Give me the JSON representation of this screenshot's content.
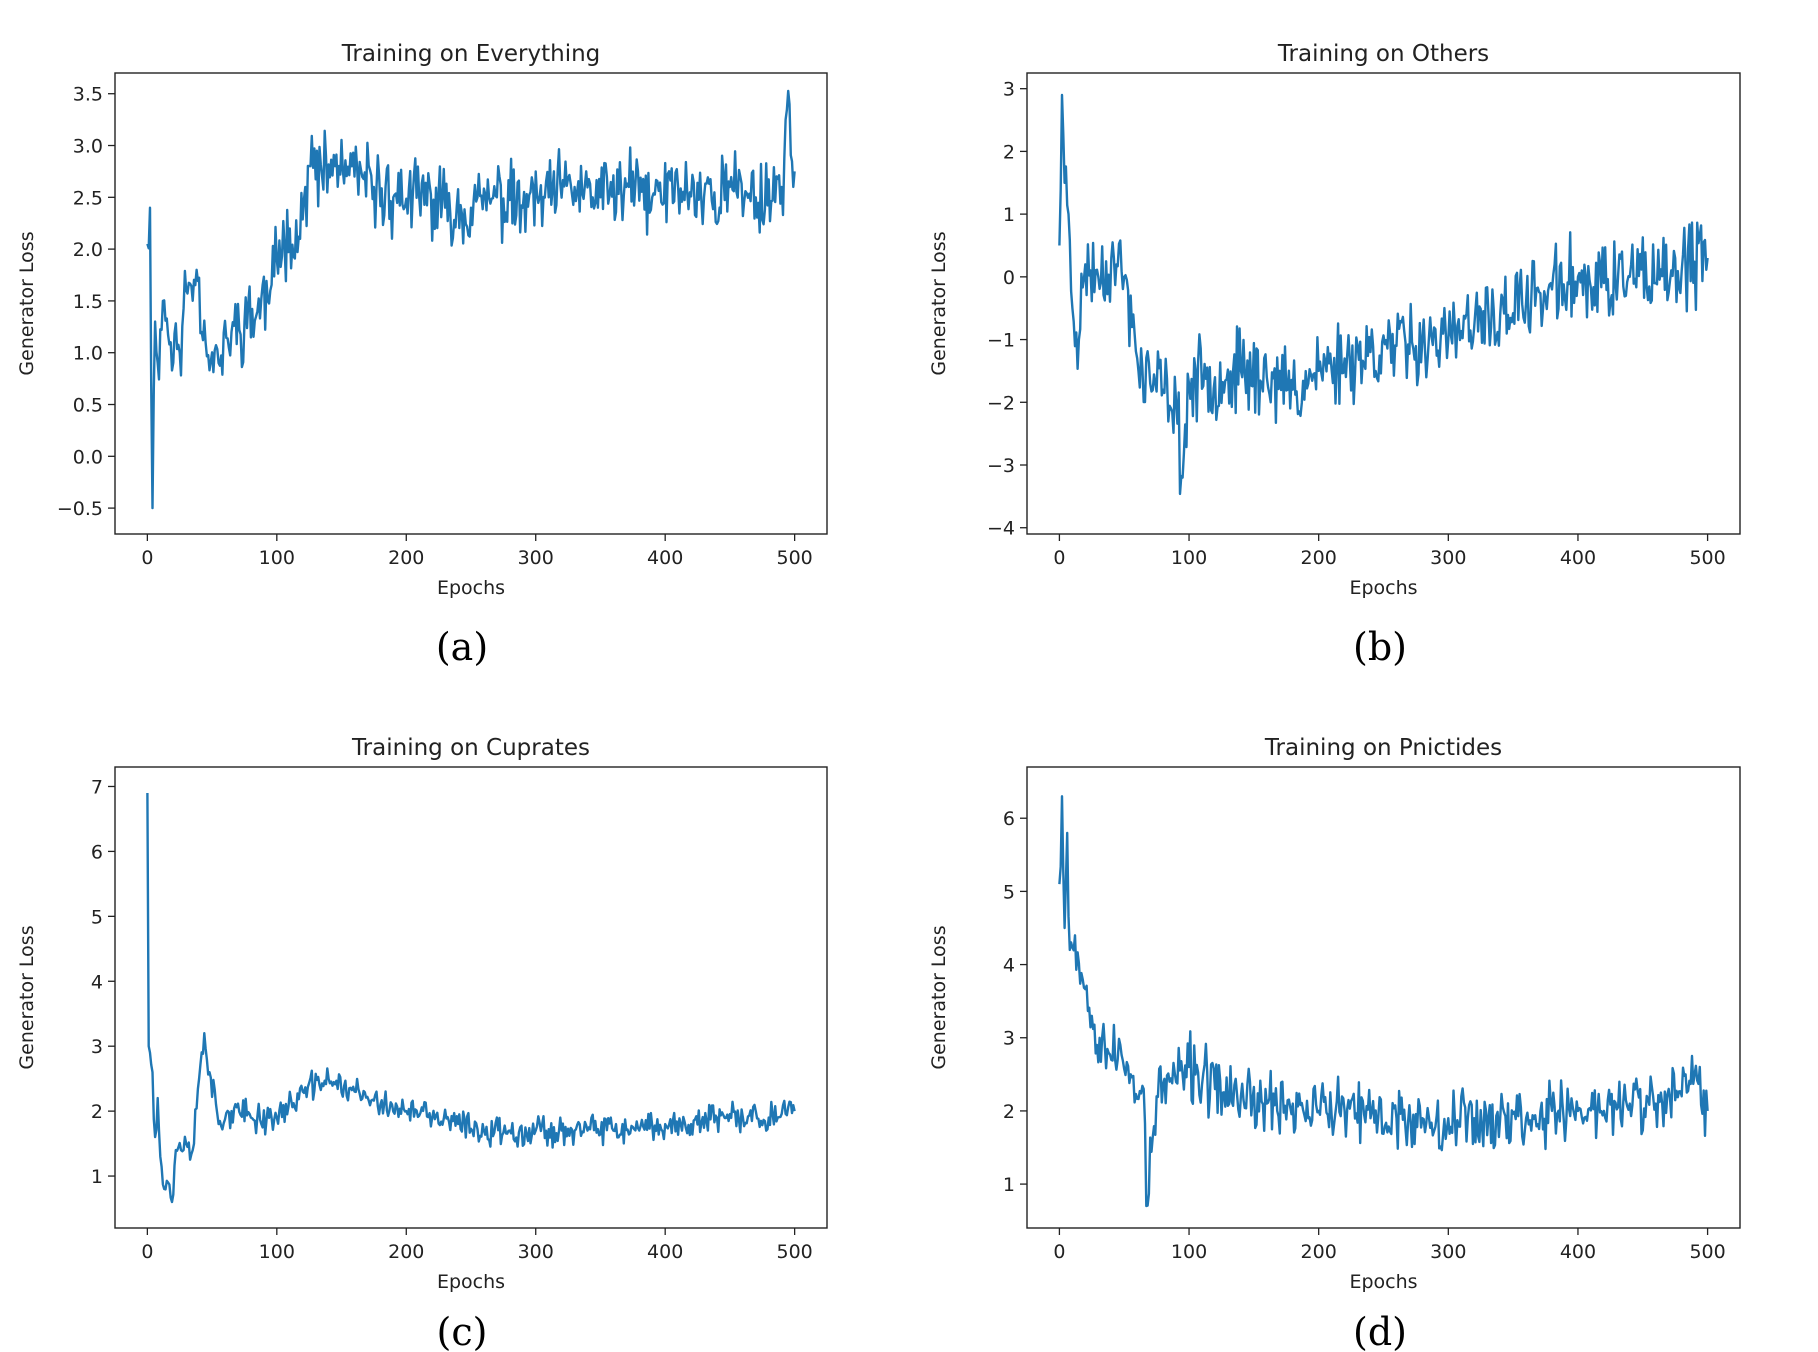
{
  "chart_data": [
    {
      "type": "line",
      "title": "Training on Everything",
      "xlabel": "Epochs",
      "ylabel": "Generator Loss",
      "caption": "(a)",
      "xlim": [
        -25,
        525
      ],
      "ylim": [
        -0.75,
        3.7
      ],
      "xticks": [
        0,
        100,
        200,
        300,
        400,
        500
      ],
      "xtick_labels": [
        "0",
        "100",
        "200",
        "300",
        "400",
        "500"
      ],
      "yticks": [
        -0.5,
        0,
        0.5,
        1,
        1.5,
        2,
        2.5,
        3,
        3.5
      ],
      "ytick_labels": [
        "−0.5",
        "0.0",
        "0.5",
        "1.0",
        "1.5",
        "2.0",
        "2.5",
        "3.0",
        "3.5"
      ],
      "grid": false,
      "series": [
        {
          "name": "generator_loss",
          "color": "#1f77b4",
          "x": [
            0,
            2,
            4,
            6,
            8,
            12,
            18,
            25,
            30,
            38,
            45,
            55,
            65,
            75,
            85,
            95,
            100,
            110,
            118,
            122,
            126,
            135,
            145,
            160,
            175,
            190,
            210,
            230,
            250,
            270,
            290,
            310,
            330,
            350,
            370,
            390,
            410,
            430,
            450,
            470,
            490,
            496,
            500
          ],
          "y": [
            2.05,
            2.4,
            -0.5,
            1.3,
            0.9,
            1.5,
            1.1,
            1.0,
            1.6,
            1.8,
            1.1,
            0.9,
            1.2,
            1.3,
            1.4,
            1.6,
            1.9,
            2.2,
            2.1,
            2.6,
            2.8,
            2.7,
            2.8,
            2.7,
            2.6,
            2.5,
            2.5,
            2.4,
            2.4,
            2.5,
            2.4,
            2.5,
            2.6,
            2.5,
            2.6,
            2.5,
            2.6,
            2.5,
            2.6,
            2.5,
            2.6,
            3.4,
            2.75
          ],
          "noise": 0.45,
          "seed": 11
        }
      ]
    },
    {
      "type": "line",
      "title": "Training on Others",
      "xlabel": "Epochs",
      "ylabel": "Generator Loss",
      "caption": "(b)",
      "xlim": [
        -25,
        525
      ],
      "ylim": [
        -4.1,
        3.25
      ],
      "xticks": [
        0,
        100,
        200,
        300,
        400,
        500
      ],
      "xtick_labels": [
        "0",
        "100",
        "200",
        "300",
        "400",
        "500"
      ],
      "yticks": [
        -4,
        -3,
        -2,
        -1,
        0,
        1,
        2,
        3
      ],
      "ytick_labels": [
        "−4",
        "−3",
        "−2",
        "−1",
        "0",
        "1",
        "2",
        "3"
      ],
      "grid": false,
      "series": [
        {
          "name": "generator_loss",
          "color": "#1f77b4",
          "x": [
            0,
            2,
            4,
            7,
            10,
            15,
            20,
            30,
            40,
            50,
            60,
            70,
            80,
            90,
            95,
            100,
            120,
            140,
            160,
            180,
            200,
            220,
            240,
            260,
            280,
            300,
            320,
            340,
            360,
            380,
            400,
            420,
            440,
            460,
            480,
            500
          ],
          "y": [
            0.5,
            2.9,
            1.5,
            1.0,
            -0.5,
            -1.0,
            0.2,
            0.0,
            0.3,
            0.0,
            -1.3,
            -1.7,
            -1.8,
            -2.0,
            -3.2,
            -1.7,
            -1.6,
            -1.5,
            -1.6,
            -1.8,
            -1.5,
            -1.3,
            -1.2,
            -1.1,
            -1.0,
            -1.0,
            -0.8,
            -0.6,
            -0.4,
            -0.2,
            0.0,
            -0.1,
            0.0,
            -0.1,
            0.1,
            0.3
          ],
          "noise": 0.8,
          "seed": 23
        }
      ]
    },
    {
      "type": "line",
      "title": "Training on Cuprates",
      "xlabel": "Epochs",
      "ylabel": "Generator Loss",
      "caption": "(c)",
      "xlim": [
        -25,
        525
      ],
      "ylim": [
        0.2,
        7.3
      ],
      "xticks": [
        0,
        100,
        200,
        300,
        400,
        500
      ],
      "xtick_labels": [
        "0",
        "100",
        "200",
        "300",
        "400",
        "500"
      ],
      "yticks": [
        1,
        2,
        3,
        4,
        5,
        6,
        7
      ],
      "ytick_labels": [
        "1",
        "2",
        "3",
        "4",
        "5",
        "6",
        "7"
      ],
      "grid": false,
      "series": [
        {
          "name": "generator_loss",
          "color": "#1f77b4",
          "x": [
            0,
            1,
            2,
            4,
            6,
            8,
            10,
            13,
            16,
            19,
            22,
            26,
            30,
            35,
            40,
            44,
            48,
            55,
            65,
            80,
            100,
            120,
            140,
            160,
            180,
            200,
            220,
            240,
            260,
            280,
            300,
            320,
            340,
            360,
            380,
            400,
            420,
            440,
            460,
            480,
            500
          ],
          "y": [
            6.9,
            3.0,
            2.9,
            2.6,
            1.6,
            2.2,
            1.3,
            0.8,
            0.9,
            0.6,
            1.4,
            1.4,
            1.5,
            1.4,
            2.5,
            3.2,
            2.6,
            1.8,
            2.0,
            1.9,
            1.9,
            2.3,
            2.5,
            2.3,
            2.1,
            2.0,
            1.9,
            1.8,
            1.7,
            1.7,
            1.7,
            1.7,
            1.7,
            1.7,
            1.7,
            1.8,
            1.8,
            1.9,
            1.9,
            1.9,
            2.0
          ],
          "noise": 0.28,
          "seed": 37
        }
      ]
    },
    {
      "type": "line",
      "title": "Training on Pnictides",
      "xlabel": "Epochs",
      "ylabel": "Generator Loss",
      "caption": "(d)",
      "xlim": [
        -25,
        525
      ],
      "ylim": [
        0.4,
        6.7
      ],
      "xticks": [
        0,
        100,
        200,
        300,
        400,
        500
      ],
      "xtick_labels": [
        "0",
        "100",
        "200",
        "300",
        "400",
        "500"
      ],
      "yticks": [
        1,
        2,
        3,
        4,
        5,
        6
      ],
      "ytick_labels": [
        "1",
        "2",
        "3",
        "4",
        "5",
        "6"
      ],
      "grid": false,
      "series": [
        {
          "name": "generator_loss",
          "color": "#1f77b4",
          "x": [
            0,
            2,
            4,
            6,
            8,
            12,
            18,
            25,
            35,
            45,
            55,
            65,
            67,
            75,
            85,
            95,
            100,
            120,
            140,
            160,
            180,
            200,
            220,
            240,
            260,
            280,
            300,
            320,
            340,
            360,
            380,
            400,
            420,
            440,
            460,
            480,
            490,
            500
          ],
          "y": [
            5.1,
            6.3,
            4.5,
            5.8,
            4.2,
            4.4,
            3.8,
            3.3,
            2.9,
            2.7,
            2.5,
            2.3,
            0.7,
            2.2,
            2.4,
            2.5,
            2.6,
            2.3,
            2.2,
            2.1,
            2.1,
            2.0,
            2.0,
            1.9,
            1.9,
            1.9,
            1.9,
            1.9,
            1.9,
            1.9,
            2.0,
            2.0,
            2.0,
            2.1,
            2.1,
            2.2,
            2.5,
            2.0
          ],
          "noise": 0.55,
          "seed": 53
        }
      ]
    }
  ]
}
